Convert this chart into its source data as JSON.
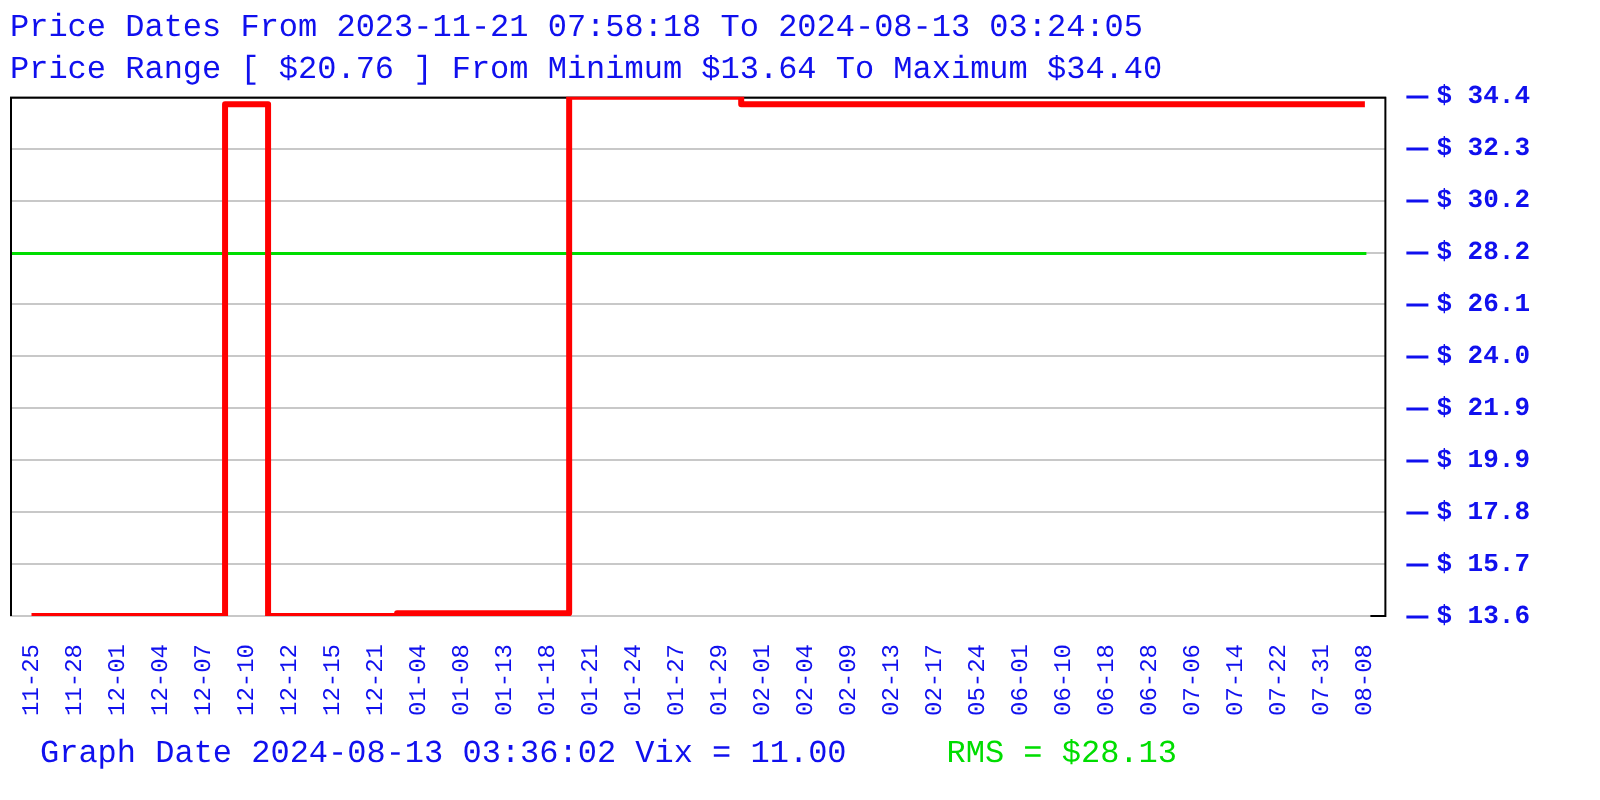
{
  "chart_data": {
    "type": "step",
    "title": "Price Dates From 2023-11-21 07:58:18 To 2024-08-13 03:24:05",
    "subtitle": "Price Range [ $20.76 ] From Minimum $13.64 To Maximum $34.40",
    "categories": [
      "11-25",
      "11-28",
      "12-01",
      "12-04",
      "12-07",
      "12-10",
      "12-12",
      "12-15",
      "12-21",
      "01-04",
      "01-08",
      "01-13",
      "01-18",
      "01-21",
      "01-24",
      "01-27",
      "01-29",
      "02-01",
      "02-04",
      "02-09",
      "02-13",
      "02-17",
      "05-24",
      "06-01",
      "06-10",
      "06-18",
      "06-28",
      "07-06",
      "07-14",
      "07-22",
      "07-31",
      "08-08"
    ],
    "series": [
      {
        "color": "#ff0000",
        "values": [
          13.64,
          13.64,
          13.64,
          13.64,
          13.64,
          34.1,
          13.64,
          13.64,
          13.64,
          13.75,
          13.75,
          13.75,
          13.75,
          34.4,
          34.4,
          34.4,
          34.4,
          34.1,
          34.1,
          34.1,
          34.1,
          34.1,
          34.1,
          34.1,
          34.1,
          34.1,
          34.1,
          34.1,
          34.1,
          34.1,
          34.1,
          34.1
        ]
      }
    ],
    "ylim": [
      13.64,
      34.4
    ],
    "yticks": [
      {
        "value": 13.64,
        "label": "$ 13.6"
      },
      {
        "value": 15.716,
        "label": "$ 15.7"
      },
      {
        "value": 17.792,
        "label": "$ 17.8"
      },
      {
        "value": 19.868,
        "label": "$ 19.9"
      },
      {
        "value": 21.944,
        "label": "$ 21.9"
      },
      {
        "value": 24.02,
        "label": "$ 24.0"
      },
      {
        "value": 26.096,
        "label": "$ 26.1"
      },
      {
        "value": 28.172,
        "label": "$ 28.2"
      },
      {
        "value": 30.248,
        "label": "$ 30.2"
      },
      {
        "value": 32.324,
        "label": "$ 32.3"
      },
      {
        "value": 34.4,
        "label": "$ 34.4"
      }
    ],
    "ref_lines": [
      {
        "axis": "y",
        "value": 28.13,
        "label": "RMS = $28.13",
        "color": "#00dd00"
      }
    ],
    "annotations": [
      "Graph Date 2024-08-13 03:36:02 Vix = 11.00"
    ],
    "grid": "y",
    "legend": false,
    "line_style": "solid",
    "marker": "none"
  }
}
